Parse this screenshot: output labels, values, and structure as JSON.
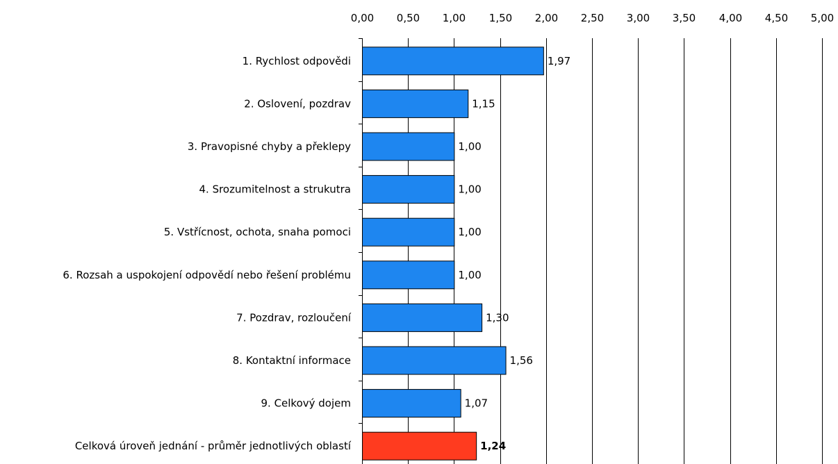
{
  "chart_data": {
    "type": "bar",
    "orientation": "horizontal",
    "x_axis_position": "top",
    "grid": true,
    "xlim": [
      0,
      5
    ],
    "x_ticks": [
      "0,00",
      "0,50",
      "1,00",
      "1,50",
      "2,00",
      "2,50",
      "3,00",
      "3,50",
      "4,00",
      "4,50",
      "5,00"
    ],
    "categories": [
      "1. Rychlost odpovědi",
      "2. Oslovení, pozdrav",
      "3. Pravopisné chyby a překlepy",
      "4. Srozumitelnost a strukutra",
      "5. Vstřícnost, ochota, snaha pomoci",
      "6. Rozsah a uspokojení odpovědí nebo řešení problému",
      "7. Pozdrav, rozloučení",
      "8. Kontaktní informace",
      "9. Celkový dojem",
      "Celková úroveň jednání - průměr jednotlivých oblastí"
    ],
    "values": [
      1.97,
      1.15,
      1.0,
      1.0,
      1.0,
      1.0,
      1.3,
      1.56,
      1.07,
      1.24
    ],
    "value_labels": [
      "1,97",
      "1,15",
      "1,00",
      "1,00",
      "1,00",
      "1,00",
      "1,30",
      "1,56",
      "1,07",
      "1,24"
    ],
    "highlight_index": 9,
    "colors": {
      "bar": "#1E86F0",
      "highlight_bar": "#FF3B1F",
      "bar_border": "#000000",
      "grid": "#000000"
    }
  }
}
